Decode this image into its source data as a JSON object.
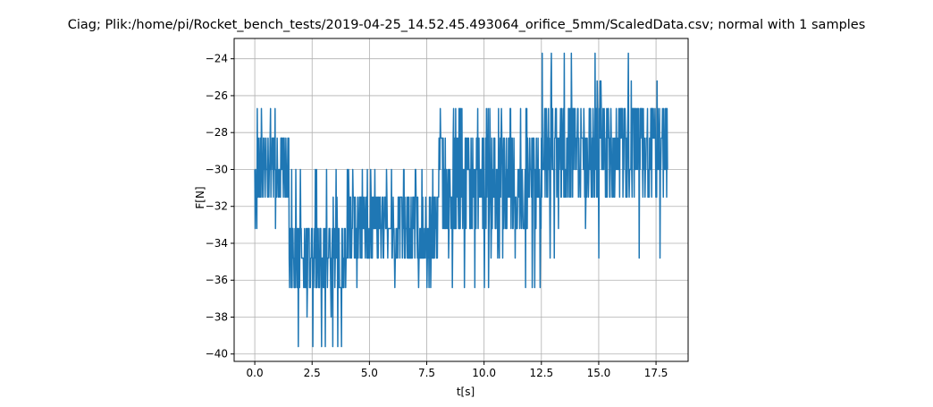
{
  "chart_data": {
    "type": "line",
    "title": "Ciag; Plik:/home/pi/Rocket_bench_tests/2019-04-25_14.52.45.493064_orifice_5mm/ScaledData.csv; normal with 1 samples",
    "xlabel": "t[s]",
    "ylabel": "F[N]",
    "xlim": [
      -0.9,
      18.9
    ],
    "ylim": [
      -40.4,
      -22.9
    ],
    "xticks": [
      0.0,
      2.5,
      5.0,
      7.5,
      10.0,
      12.5,
      15.0,
      17.5
    ],
    "xtick_labels": [
      "0.0",
      "2.5",
      "5.0",
      "7.5",
      "10.0",
      "12.5",
      "15.0",
      "17.5"
    ],
    "yticks": [
      -40,
      -38,
      -36,
      -34,
      -32,
      -30,
      -28,
      -26,
      -24
    ],
    "ytick_labels": [
      "−40",
      "−38",
      "−36",
      "−34",
      "−32",
      "−30",
      "−28",
      "−26",
      "−24"
    ],
    "grid": true,
    "color": "#1f77b4",
    "series": [
      {
        "x_start": 0.0,
        "x_end": 18.0,
        "levels": [
          -23.7,
          -25.2,
          -26.7,
          -28.3,
          -30.0,
          -31.5,
          -33.2,
          -34.8,
          -36.4,
          -38.0,
          -39.6
        ],
        "segments": [
          {
            "t": [
              0.0,
              1.5
            ],
            "lo": -31.5,
            "hi": -28.3,
            "spikes_up": [
              -26.7
            ],
            "spikes_down": [
              -33.2
            ]
          },
          {
            "t": [
              1.5,
              4.0
            ],
            "lo": -36.4,
            "hi": -33.2,
            "spikes_up": [
              -30.0,
              -31.5
            ],
            "spikes_down": [
              -38.0,
              -39.6
            ]
          },
          {
            "t": [
              4.0,
              8.0
            ],
            "lo": -34.8,
            "hi": -31.5,
            "spikes_up": [
              -30.0
            ],
            "spikes_down": [
              -36.4,
              -38.0
            ]
          },
          {
            "t": [
              8.0,
              12.5
            ],
            "lo": -33.2,
            "hi": -28.3,
            "spikes_up": [
              -26.7
            ],
            "spikes_down": [
              -36.4,
              -34.8
            ]
          },
          {
            "t": [
              12.5,
              18.0
            ],
            "lo": -31.5,
            "hi": -26.7,
            "spikes_up": [
              -25.2,
              -23.7
            ],
            "spikes_down": [
              -33.2,
              -34.8
            ]
          }
        ]
      }
    ]
  }
}
